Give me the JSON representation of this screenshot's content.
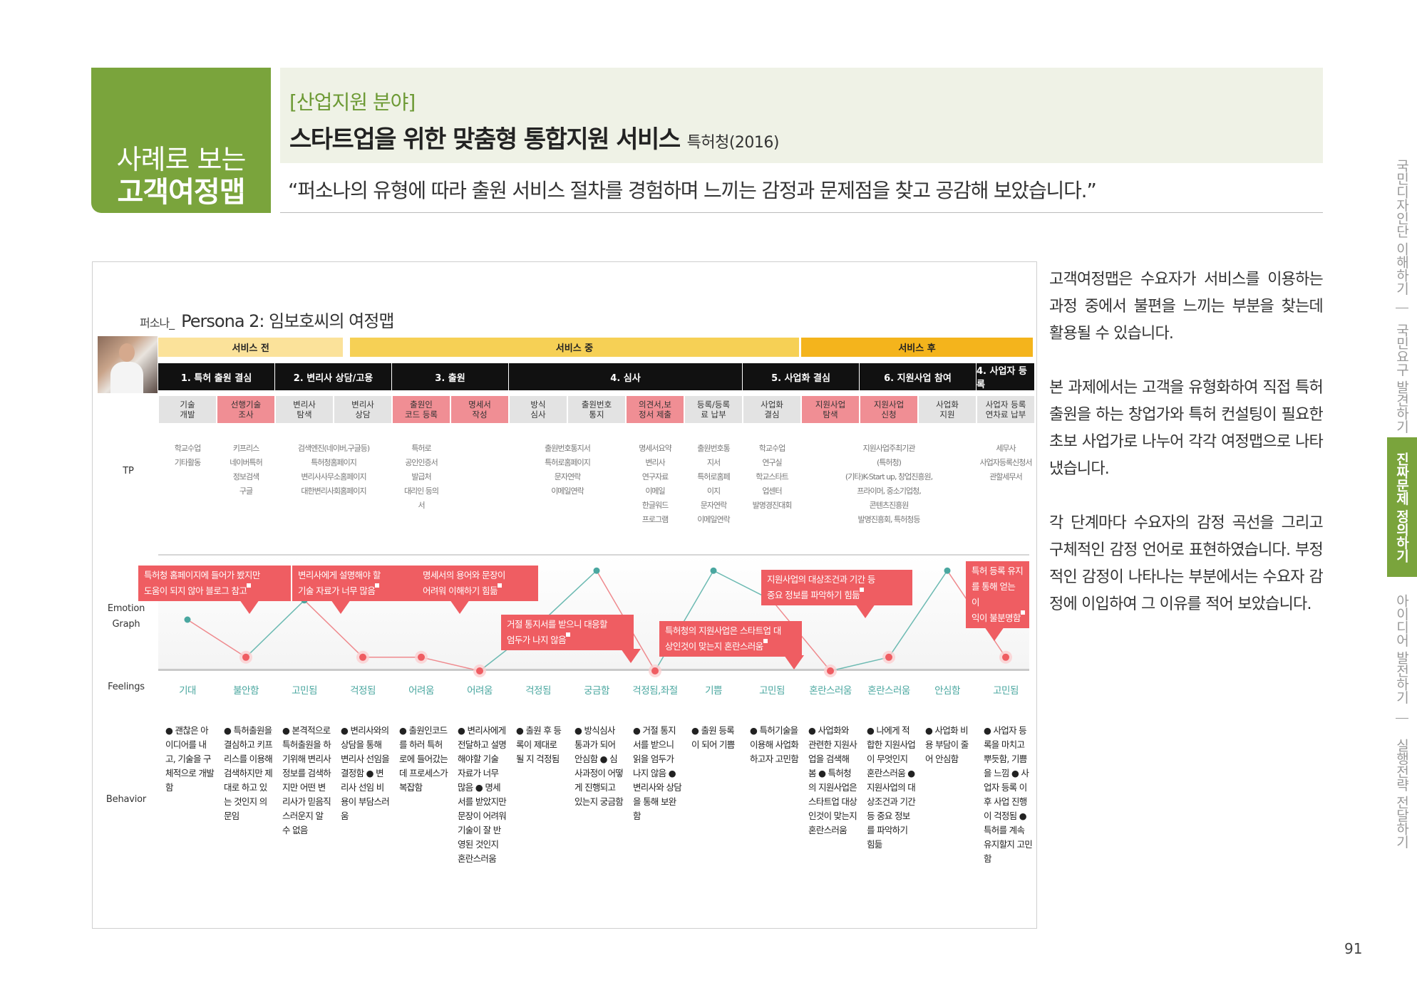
{
  "header": {
    "box_line1": "사례로 보는",
    "box_line2": "고객여정맵",
    "category": "[산업지원 분야]",
    "title": "스타트업을 위한 맞춤형 통합지원 서비스",
    "agency": "특허청(2016)",
    "quote": "“퍼소나의 유형에 따라 출원 서비스 절차를 경험하며 느끼는 감정과 문제점을 찾고 공감해 보았습니다.”"
  },
  "side_tabs": [
    "국민디자인단 이해하기",
    "국민요구 발견하기",
    "진짜문제 정의하기",
    "아이디어 발전하기",
    "실행전략 전달하기"
  ],
  "description": [
    "고객여정맵은 수요자가 서비스를 이용하는 과정 중에서 불편을 느끼는 부분을 찾는데 활용될 수 있습니다.",
    "본 과제에서는 고객을 유형화하여 직접 특허 출원을 하는 창업가와 특허 컨설팅이 필요한 초보 사업가로 나누어 각각 여정맵으로 나타냈습니다.",
    "각 단계마다 수요자의 감정 곡선을 그리고 구체적인 감정 언어로 표현하였습니다. 부정적인 감정이 나타나는 부분에서는 수요자 감정에 이입하여 그 이유를 적어 보았습니다."
  ],
  "persona": {
    "prefix": "퍼소나_",
    "title": "Persona 2: 임보호씨의 여정맵"
  },
  "phases": [
    {
      "label": "서비스 전",
      "color": "#fbe29a"
    },
    {
      "label": "서비스 중",
      "color": "#f6d055"
    },
    {
      "label": "서비스 후",
      "color": "#f4b41c"
    }
  ],
  "stages": [
    "1. 특허 출원 결심",
    "2. 변리사 상담/고용",
    "3. 출원",
    "4. 심사",
    "5. 사업화 결심",
    "6. 지원사업 참여",
    "4. 사업자 등록"
  ],
  "steps": [
    {
      "label": "기술\n개발",
      "type": "g"
    },
    {
      "label": "선행기술\n조사",
      "type": "r"
    },
    {
      "label": "변리사\n탐색",
      "type": "g"
    },
    {
      "label": "변리사\n상담",
      "type": "g"
    },
    {
      "label": "출원인\n코드 등록",
      "type": "r"
    },
    {
      "label": "명세서\n작성",
      "type": "r"
    },
    {
      "label": "방식\n심사",
      "type": "g"
    },
    {
      "label": "출원번호\n통지",
      "type": "g"
    },
    {
      "label": "의견서,보\n정서 제출",
      "type": "r"
    },
    {
      "label": "등록/등록\n료 납부",
      "type": "g"
    },
    {
      "label": "사업화\n결심",
      "type": "g"
    },
    {
      "label": "지원사업\n탐색",
      "type": "r"
    },
    {
      "label": "지원사업\n신청",
      "type": "r"
    },
    {
      "label": "사업화\n지원",
      "type": "g"
    },
    {
      "label": "사업자 등록\n연차료 납부",
      "type": "g"
    }
  ],
  "row_labels": {
    "tip": "TP",
    "emotion": "Emotion\nGraph",
    "feelings": "Feelings",
    "behavior": "Behavior"
  },
  "tips": [
    "학교수업\n기타활동",
    "키프리스\n네이버특허\n정보검색\n구글",
    "검색엔진(네이버,구글등)\n특허청홈페이지\n변리사사무소홈페이지\n대한변리사회홈페이지",
    "특허로\n공인인증서\n발급처\n대리인 등의\n서",
    "출원번호통지서\n특허로홈페이지\n문자연락\n이메일연락",
    "명세서요약\n변리사\n연구자료\n이메일\n한글워드\n프로그램",
    "출원번호통\n지서\n특허로홈페\n이지\n문자연락\n이메일연락",
    "학교수업\n연구실\n학교스타트\n업센터\n발명경진대회",
    "지원사업주최기관\n(특허청)\n(기타)K-Start up, 창업진흥원,\n프라이머, 중소기업청,\n콘텐츠진흥원\n발명진흥회, 특허청등",
    "세무사\n사업자등록신청서\n관할세무서"
  ],
  "emotion_points": [
    {
      "v": 0.45,
      "neg": false
    },
    {
      "v": 0.12,
      "neg": true
    },
    {
      "v": 0.62,
      "neg": false
    },
    {
      "v": 0.12,
      "neg": true
    },
    {
      "v": 0.12,
      "neg": true
    },
    {
      "v": 0.0,
      "neg": true
    },
    {
      "v": 0.4,
      "neg": false
    },
    {
      "v": 0.88,
      "neg": false
    },
    {
      "v": 0.0,
      "neg": true
    },
    {
      "v": 0.88,
      "neg": false
    },
    {
      "v": 0.62,
      "neg": false
    },
    {
      "v": 0.0,
      "neg": true
    },
    {
      "v": 0.12,
      "neg": true
    },
    {
      "v": 0.88,
      "neg": false
    },
    {
      "v": 0.12,
      "neg": true
    }
  ],
  "bubbles": [
    "특허청 홈페이지에 들어가 봤지만\n도움이 되지 않아 블로그 참고",
    "변리사에게 설명해야 할\n기술 자료가 너무 많음",
    "명세서의 용어와 문장이\n어려워 이해하기 힘듦",
    "거절 통지서를 받으니 대응할\n엄두가 나지 않음",
    "특허청의 지원사업은 스타트업 대\n상인것이 맞는지 혼란스러움",
    "지원사업의 대상조건과 기간 등\n중요 정보를 파악하기 힘듦",
    "특허 등록 유지\n를 통해 얻는 이\n익이 불분명함"
  ],
  "feelings": [
    "기대",
    "불안함",
    "고민됨",
    "걱정됨",
    "어려움",
    "어려움",
    "걱정됨",
    "궁금함",
    "걱정됨,좌절",
    "기쁨",
    "고민됨",
    "혼란스러움",
    "혼란스러움",
    "안심함",
    "고민됨"
  ],
  "behaviors": [
    "● 괜찮은 아이디어를 내고, 기술을 구체적으로 개발함",
    "● 특허출원을 결심하고 키프리스를 이용해 검색하지만 제대로 하고 있는 것인지 의문임",
    "● 본격적으로 특허출원을 하기위해 변리사 정보를 검색하지만 어떤 변리사가 믿음직스러운지 알 수 없음",
    "● 변리사와의 상담을 통해 변리사 선임을 결정함 ● 변리사 선임 비용이 부담스러움",
    "● 출원인코드를 하러 특허로에 들어갔는데 프로세스가 복잡함",
    "● 변리사에게 전달하고 설명해야할 기술 자료가 너무 많음 ● 명세서를 받았지만 문장이 어려워 기술이 잘 반영된 것인지 혼란스러움",
    "● 출원 후 등록이 제대로 될 지 걱정됨",
    "● 방식심사 통과가 되어 안심함 ● 심사과정이 어떻게 진행되고 있는지 궁금함",
    "● 거절 통지서를 받으니 읽을 엄두가 나지 않음 ● 변리사와 상담을 통해 보완함",
    "● 출원 등록이 되어 기쁨",
    "● 특허기술을 이용해 사업화 하고자 고민함",
    "● 사업화와 관련한 지원사업을 검색해 봄 ● 특허청의 지원사업은 스타트업 대상인것이 맞는지 혼란스러움",
    "● 나에게 적합한 지원사업이 무엇인지 혼란스러움 ● 지원사업의 대상조건과 기간 등 중요 정보를 파악하기 힘듦",
    "● 사업화 비용 부담이 줄어 안심함",
    "● 사업자 등록을 마치고 뿌듯함, 기쁨을 느낌 ● 사업자 등록 이후 사업 진행이 걱정됨 ● 특허를 계속 유지할지 고민함"
  ],
  "page_number": "91",
  "colors": {
    "accent_green": "#7aa43c",
    "negative_red": "#ef5d62",
    "positive_teal": "#4aa7a0"
  }
}
